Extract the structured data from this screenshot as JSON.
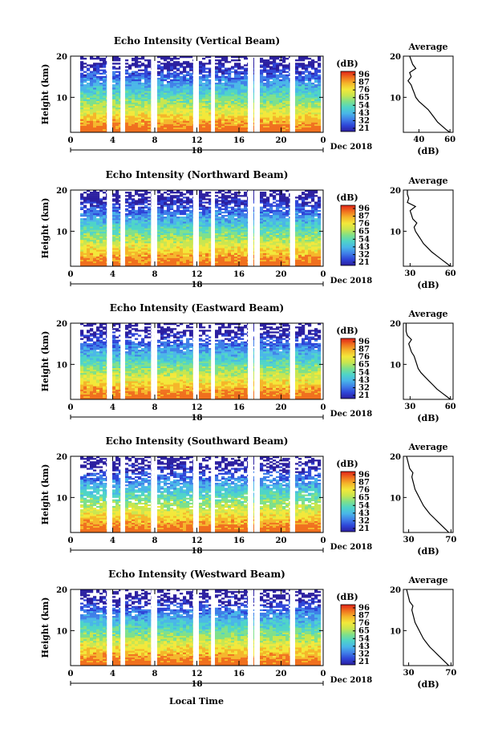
{
  "colorbar": {
    "unit": "(dB)",
    "ticks": [
      "96",
      "87",
      "76",
      "65",
      "54",
      "43",
      "32",
      "21"
    ],
    "colors": [
      "#2b1fa0",
      "#2e45d8",
      "#3f7fe8",
      "#49b6e8",
      "#4fd4c8",
      "#7ee08a",
      "#c8e64f",
      "#f3e83a",
      "#f5b62a",
      "#f0701e",
      "#e02318"
    ]
  },
  "shared": {
    "date_label": "Dec 2018",
    "x_ticks": [
      "0",
      "4",
      "8",
      "12",
      "16",
      "20",
      "0"
    ],
    "day_label": "18",
    "x_axis_label": "Local Time",
    "y_axis_label": "Height (km)",
    "y_ticks": [
      "20",
      "10"
    ],
    "profile_title": "Average",
    "profile_xlabel": "(dB)"
  },
  "chart_data": [
    {
      "type": "heatmap",
      "title": "Echo Intensity (Vertical Beam)",
      "xlabel": "Local Time",
      "ylabel": "Height (km)",
      "xlim": [
        0,
        24
      ],
      "ylim": [
        1.5,
        20
      ],
      "gaps_hours": [
        0.5,
        13.5,
        18.8
      ],
      "profile": {
        "type": "line",
        "title": "Average",
        "x_ticks": [
          "40",
          "60"
        ],
        "xlim": [
          30,
          62
        ],
        "heights": [
          1.5,
          2,
          3,
          4,
          5,
          6,
          7,
          8,
          9,
          10,
          11,
          12,
          13,
          14,
          15,
          16,
          17,
          18,
          19,
          20
        ],
        "values": [
          60,
          58,
          55,
          52,
          50,
          48,
          46,
          43,
          40,
          38,
          37,
          36,
          35,
          33,
          35,
          34,
          38,
          36,
          35,
          34
        ]
      }
    },
    {
      "type": "heatmap",
      "title": "Echo Intensity (Northward Beam)",
      "xlabel": "Local Time",
      "ylabel": "Height (km)",
      "xlim": [
        0,
        24
      ],
      "ylim": [
        1.5,
        20
      ],
      "gaps_hours": [
        0.5,
        13.5,
        18.8
      ],
      "profile": {
        "type": "line",
        "title": "Average",
        "x_ticks": [
          "30",
          "60"
        ],
        "xlim": [
          25,
          62
        ],
        "heights": [
          1.5,
          2,
          3,
          4,
          5,
          6,
          7,
          8,
          9,
          10,
          11,
          12,
          13,
          14,
          15,
          16,
          17,
          18,
          19,
          20
        ],
        "values": [
          60,
          58,
          54,
          50,
          46,
          43,
          40,
          38,
          36,
          34,
          33,
          35,
          32,
          31,
          30,
          34,
          28,
          29,
          28,
          28
        ]
      }
    },
    {
      "type": "heatmap",
      "title": "Echo Intensity (Eastward Beam)",
      "xlabel": "Local Time",
      "ylabel": "Height (km)",
      "xlim": [
        0,
        24
      ],
      "ylim": [
        1.5,
        20
      ],
      "gaps_hours": [
        0.5,
        13.5,
        18.8
      ],
      "profile": {
        "type": "line",
        "title": "Average",
        "x_ticks": [
          "30",
          "60"
        ],
        "xlim": [
          25,
          62
        ],
        "heights": [
          1.5,
          2,
          3,
          4,
          5,
          6,
          7,
          8,
          9,
          10,
          11,
          12,
          13,
          14,
          15,
          16,
          17,
          18,
          19,
          20
        ],
        "values": [
          60,
          58,
          54,
          50,
          47,
          44,
          41,
          38,
          36,
          35,
          34,
          33,
          31,
          30,
          29,
          31,
          28,
          27,
          27,
          27
        ]
      }
    },
    {
      "type": "heatmap",
      "title": "Echo Intensity (Southward Beam)",
      "xlabel": "Local Time",
      "ylabel": "Height (km)",
      "xlim": [
        0,
        24
      ],
      "ylim": [
        1.5,
        20
      ],
      "gaps_hours": [
        0.5,
        13.5,
        18.8
      ],
      "profile": {
        "type": "line",
        "title": "Average",
        "x_ticks": [
          "30",
          "70"
        ],
        "xlim": [
          25,
          72
        ],
        "heights": [
          1.5,
          2,
          3,
          4,
          5,
          6,
          7,
          8,
          9,
          10,
          11,
          12,
          13,
          14,
          15,
          16,
          17,
          18,
          19,
          20
        ],
        "values": [
          68,
          66,
          62,
          58,
          54,
          50,
          47,
          44,
          42,
          40,
          38,
          36,
          35,
          34,
          33,
          34,
          31,
          30,
          29,
          28
        ]
      }
    },
    {
      "type": "heatmap",
      "title": "Echo Intensity (Westward Beam)",
      "xlabel": "Local Time",
      "ylabel": "Height (km)",
      "xlim": [
        0,
        24
      ],
      "ylim": [
        1.5,
        20
      ],
      "gaps_hours": [
        0.5,
        13.5,
        18.8
      ],
      "profile": {
        "type": "line",
        "title": "Average",
        "x_ticks": [
          "30",
          "70"
        ],
        "xlim": [
          25,
          72
        ],
        "heights": [
          1.5,
          2,
          3,
          4,
          5,
          6,
          7,
          8,
          9,
          10,
          11,
          12,
          13,
          14,
          15,
          16,
          17,
          18,
          19,
          20
        ],
        "values": [
          68,
          66,
          62,
          58,
          54,
          50,
          47,
          44,
          42,
          40,
          38,
          36,
          35,
          34,
          33,
          34,
          31,
          30,
          29,
          28
        ]
      }
    }
  ]
}
